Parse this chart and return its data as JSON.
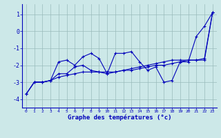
{
  "x": [
    0,
    1,
    2,
    3,
    4,
    5,
    6,
    7,
    8,
    9,
    10,
    11,
    12,
    13,
    14,
    15,
    16,
    17,
    18,
    19,
    20,
    21,
    22,
    23
  ],
  "line1": [
    -3.7,
    -3.0,
    -3.0,
    -2.9,
    -1.8,
    -1.7,
    -2.0,
    -1.5,
    -1.3,
    -1.6,
    -2.5,
    -1.3,
    -1.3,
    -1.2,
    -1.8,
    -2.3,
    -2.1,
    -3.0,
    -2.9,
    -1.8,
    -1.8,
    -0.3,
    0.3,
    1.1
  ],
  "line2": [
    -3.7,
    -3.0,
    -3.0,
    -2.9,
    -2.5,
    -2.5,
    -2.1,
    -2.0,
    -2.3,
    -2.4,
    -2.5,
    -2.4,
    -2.3,
    -2.2,
    -2.1,
    -2.0,
    -1.9,
    -1.8,
    -1.7,
    -1.7,
    -1.7,
    -1.7,
    -1.7,
    1.1
  ],
  "line3": [
    -3.7,
    -3.0,
    -3.0,
    -2.9,
    -2.7,
    -2.6,
    -2.5,
    -2.4,
    -2.4,
    -2.4,
    -2.4,
    -2.4,
    -2.3,
    -2.3,
    -2.2,
    -2.1,
    -2.0,
    -2.0,
    -1.9,
    -1.8,
    -1.7,
    -1.7,
    -1.6,
    1.1
  ],
  "xlabel": "Graphe des températures (°c)",
  "bg_color": "#cce8e8",
  "line_color": "#0000bb",
  "grid_color": "#99bbbb",
  "ylim": [
    -4.5,
    1.6
  ],
  "yticks": [
    -4,
    -3,
    -2,
    -1,
    0,
    1
  ],
  "xticks": [
    0,
    1,
    2,
    3,
    4,
    5,
    6,
    7,
    8,
    9,
    10,
    11,
    12,
    13,
    14,
    15,
    16,
    17,
    18,
    19,
    20,
    21,
    22,
    23
  ],
  "xtick_labels": [
    "0",
    "1",
    "2",
    "3",
    "4",
    "5",
    "6",
    "7",
    "8",
    "9",
    "10",
    "11",
    "12",
    "13",
    "14",
    "15",
    "16",
    "17",
    "18",
    "19",
    "20",
    "21",
    "22",
    "23"
  ],
  "figsize": [
    3.2,
    2.0
  ],
  "dpi": 100
}
